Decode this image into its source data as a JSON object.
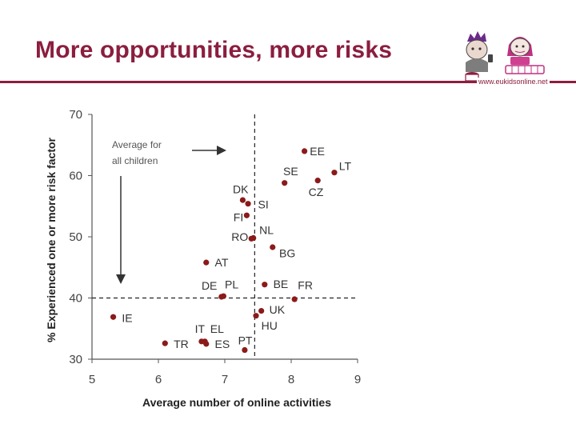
{
  "header": {
    "title": "More opportunities, more risks",
    "logo_url": "www.eukidsonline.net"
  },
  "colors": {
    "brand": "#8b1e3f",
    "point": "#8b1a1a",
    "axis": "#555555"
  },
  "chart_data": {
    "type": "scatter",
    "title": "",
    "xlabel": "Average number of online activities",
    "ylabel": "% Experienced one or more risk factor",
    "xlim": [
      5,
      9
    ],
    "ylim": [
      30,
      70
    ],
    "xticks": [
      5,
      6,
      7,
      8,
      9
    ],
    "yticks": [
      30,
      40,
      50,
      60,
      70
    ],
    "average": {
      "x": 7.45,
      "y": 40.0
    },
    "annotation": "Average for\nall children",
    "points": [
      {
        "label": "EE",
        "x": 8.2,
        "y": 64.0
      },
      {
        "label": "LT",
        "x": 8.65,
        "y": 60.5
      },
      {
        "label": "SE",
        "x": 7.9,
        "y": 58.8
      },
      {
        "label": "CZ",
        "x": 8.4,
        "y": 59.2
      },
      {
        "label": "DK",
        "x": 7.27,
        "y": 56.0
      },
      {
        "label": "SI",
        "x": 7.35,
        "y": 55.4
      },
      {
        "label": "FI",
        "x": 7.33,
        "y": 53.5
      },
      {
        "label": "NL",
        "x": 7.43,
        "y": 49.8
      },
      {
        "label": "RO",
        "x": 7.4,
        "y": 49.7
      },
      {
        "label": "BG",
        "x": 7.72,
        "y": 48.3
      },
      {
        "label": "AT",
        "x": 6.72,
        "y": 45.8
      },
      {
        "label": "BE",
        "x": 7.6,
        "y": 42.2
      },
      {
        "label": "FR",
        "x": 8.05,
        "y": 39.8
      },
      {
        "label": "DE",
        "x": 6.95,
        "y": 40.2
      },
      {
        "label": "PL",
        "x": 6.98,
        "y": 40.3
      },
      {
        "label": "UK",
        "x": 7.55,
        "y": 37.9
      },
      {
        "label": "HU",
        "x": 7.47,
        "y": 37.1
      },
      {
        "label": "IE",
        "x": 5.32,
        "y": 36.9
      },
      {
        "label": "IT",
        "x": 6.65,
        "y": 32.9
      },
      {
        "label": "EL",
        "x": 6.7,
        "y": 32.9
      },
      {
        "label": "TR",
        "x": 6.1,
        "y": 32.6
      },
      {
        "label": "ES",
        "x": 6.72,
        "y": 32.5
      },
      {
        "label": "PT",
        "x": 7.3,
        "y": 31.5
      }
    ],
    "labels": [
      {
        "text": "EE",
        "x": 8.28,
        "y": 64.0
      },
      {
        "text": "LT",
        "x": 8.72,
        "y": 61.6
      },
      {
        "text": "SE",
        "x": 7.88,
        "y": 60.7
      },
      {
        "text": "CZ",
        "x": 8.26,
        "y": 57.3
      },
      {
        "text": "DK",
        "x": 7.12,
        "y": 57.8
      },
      {
        "text": "SI",
        "x": 7.5,
        "y": 55.3
      },
      {
        "text": "FI",
        "x": 7.13,
        "y": 53.2
      },
      {
        "text": "NL",
        "x": 7.52,
        "y": 51.1
      },
      {
        "text": "RO",
        "x": 7.1,
        "y": 50.0
      },
      {
        "text": "BG",
        "x": 7.82,
        "y": 47.3
      },
      {
        "text": "AT",
        "x": 6.85,
        "y": 45.8
      },
      {
        "text": "DE",
        "x": 6.65,
        "y": 42.0
      },
      {
        "text": "PL",
        "x": 7.0,
        "y": 42.2
      },
      {
        "text": "BE",
        "x": 7.73,
        "y": 42.3
      },
      {
        "text": "FR",
        "x": 8.1,
        "y": 42.1
      },
      {
        "text": "UK",
        "x": 7.67,
        "y": 38.1
      },
      {
        "text": "HU",
        "x": 7.55,
        "y": 35.5
      },
      {
        "text": "IE",
        "x": 5.45,
        "y": 36.7
      },
      {
        "text": "IT",
        "x": 6.55,
        "y": 35.0
      },
      {
        "text": "EL",
        "x": 6.78,
        "y": 35.0
      },
      {
        "text": "TR",
        "x": 6.23,
        "y": 32.5
      },
      {
        "text": "ES",
        "x": 6.85,
        "y": 32.5
      },
      {
        "text": "PT",
        "x": 7.2,
        "y": 33.1
      }
    ]
  }
}
